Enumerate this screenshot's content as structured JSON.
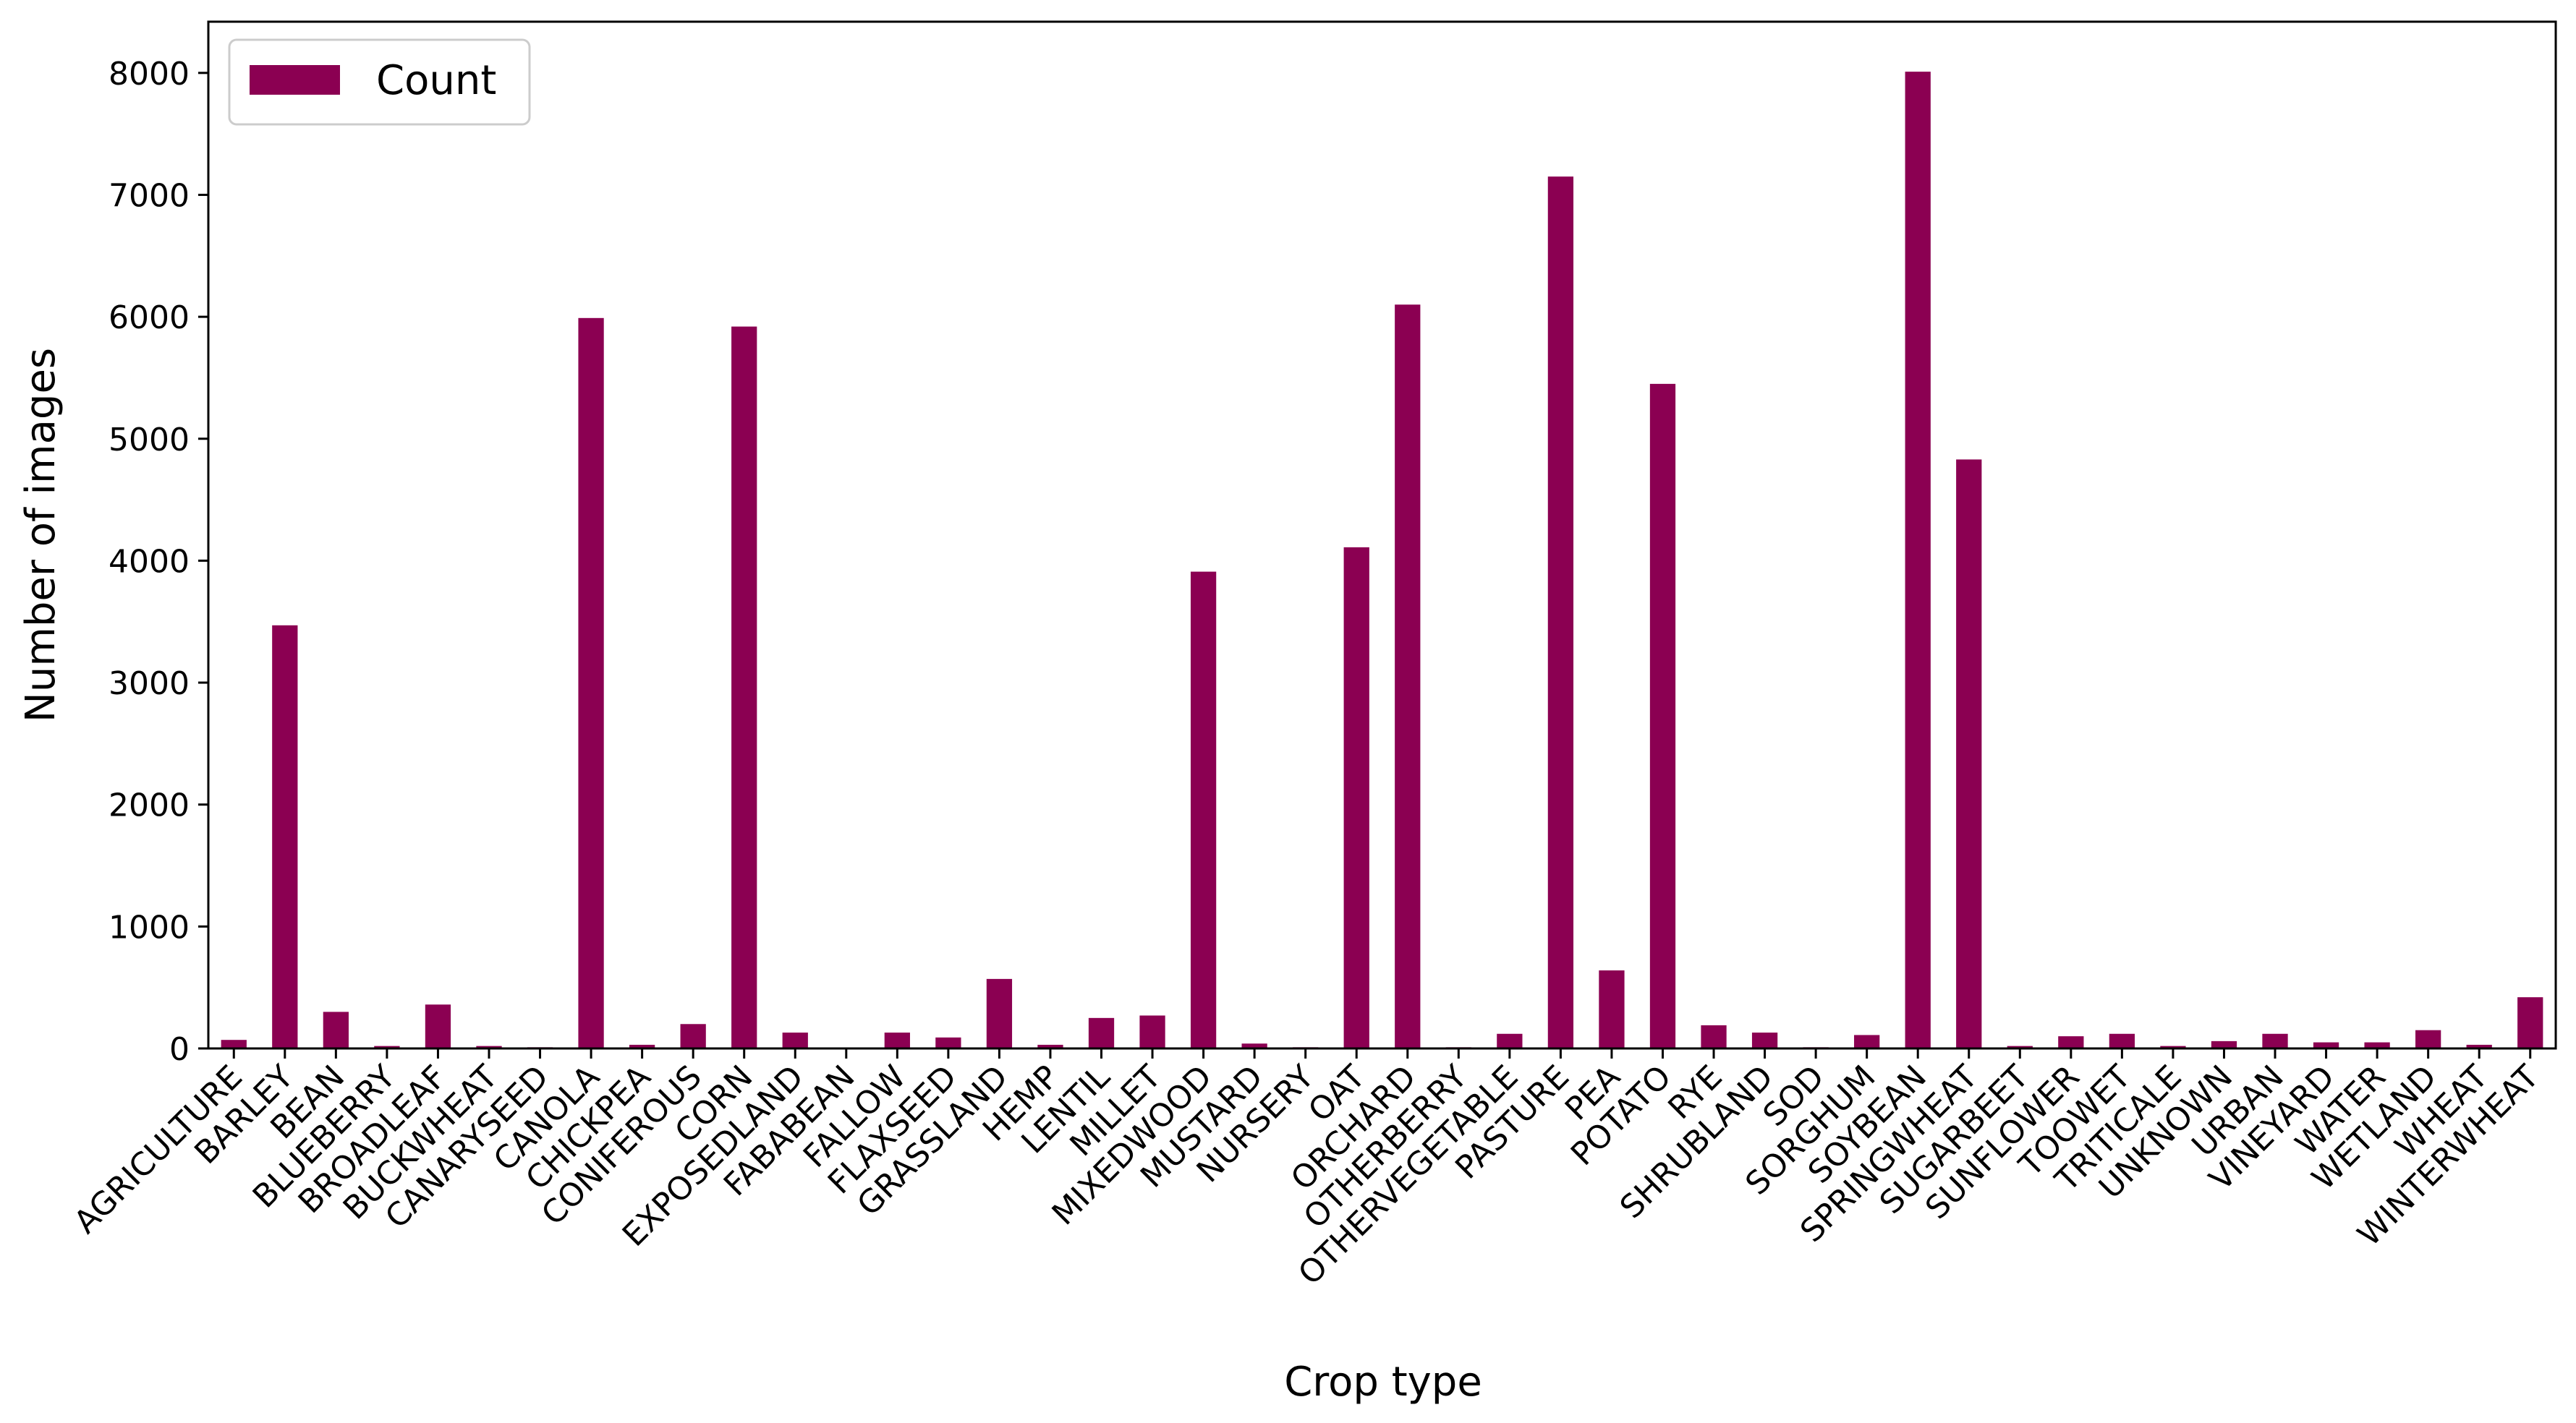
{
  "colors": {
    "bar": "#8B0052",
    "axis": "#000000",
    "background": "#ffffff"
  },
  "chart_data": {
    "type": "bar",
    "title": "",
    "xlabel": "Crop type",
    "ylabel": "Number of images",
    "ylim": [
      0,
      8420
    ],
    "yticks": [
      0,
      1000,
      2000,
      3000,
      4000,
      5000,
      6000,
      7000,
      8000
    ],
    "grid": false,
    "legend": {
      "placement": "top-left",
      "entries": [
        "Count"
      ]
    },
    "categories": [
      "AGRICULTURE",
      "BARLEY",
      "BEAN",
      "BLUEBERRY",
      "BROADLEAF",
      "BUCKWHEAT",
      "CANARYSEED",
      "CANOLA",
      "CHICKPEA",
      "CONIFEROUS",
      "CORN",
      "EXPOSEDLAND",
      "FABABEAN",
      "FALLOW",
      "FLAXSEED",
      "GRASSLAND",
      "HEMP",
      "LENTIL",
      "MILLET",
      "MIXEDWOOD",
      "MUSTARD",
      "NURSERY",
      "OAT",
      "ORCHARD",
      "OTHERBERRY",
      "OTHERVEGETABLE",
      "PASTURE",
      "PEA",
      "POTATO",
      "RYE",
      "SHRUBLAND",
      "SOD",
      "SORGHUM",
      "SOYBEAN",
      "SPRINGWHEAT",
      "SUGARBEET",
      "SUNFLOWER",
      "TOOWET",
      "TRITICALE",
      "UNKNOWN",
      "URBAN",
      "VINEYARD",
      "WATER",
      "WETLAND",
      "WHEAT",
      "WINTERWHEAT"
    ],
    "series": [
      {
        "name": "Count",
        "values": [
          70,
          3470,
          300,
          20,
          360,
          20,
          10,
          5990,
          30,
          200,
          5920,
          130,
          5,
          130,
          90,
          570,
          30,
          250,
          270,
          3910,
          40,
          10,
          4110,
          6100,
          10,
          120,
          7150,
          640,
          5450,
          190,
          130,
          10,
          110,
          8010,
          4830,
          20,
          100,
          120,
          20,
          60,
          120,
          50,
          50,
          150,
          30,
          420
        ]
      }
    ]
  }
}
